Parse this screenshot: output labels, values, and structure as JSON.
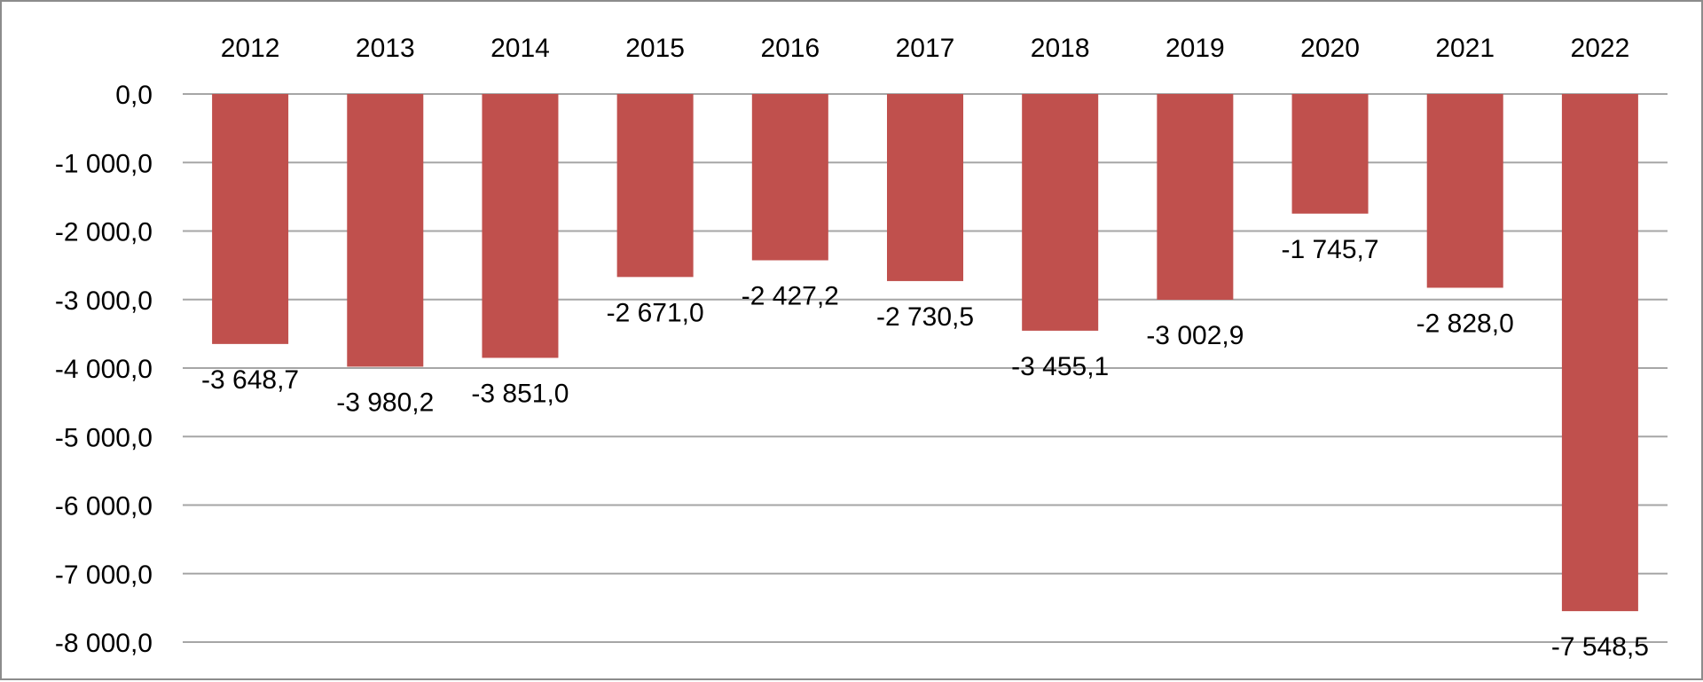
{
  "chart_data": {
    "type": "bar",
    "title": "",
    "xlabel": "",
    "ylabel": "",
    "categories": [
      "2012",
      "2013",
      "2014",
      "2015",
      "2016",
      "2017",
      "2018",
      "2019",
      "2020",
      "2021",
      "2022"
    ],
    "values": [
      -3648.7,
      -3980.2,
      -3851.0,
      -2671.0,
      -2427.2,
      -2730.5,
      -3455.1,
      -3002.9,
      -1745.7,
      -2828.0,
      -7548.5
    ],
    "data_labels": [
      "-3 648,7",
      "-3 980,2",
      "-3 851,0",
      "-2 671,0",
      "-2 427,2",
      "-2 730,5",
      "-3 455,1",
      "-3 002,9",
      "-1 745,7",
      "-2 828,0",
      "-7 548,5"
    ],
    "ylim": [
      -8000,
      0
    ],
    "y_ticks": [
      0,
      -1000,
      -2000,
      -3000,
      -4000,
      -5000,
      -6000,
      -7000,
      -8000
    ],
    "y_tick_labels": [
      "0,0",
      "-1 000,0",
      "-2 000,0",
      "-3 000,0",
      "-4 000,0",
      "-5 000,0",
      "-6 000,0",
      "-7 000,0",
      "-8 000,0"
    ],
    "category_axis_position": "top",
    "grid": true,
    "legend": "none",
    "bar_color": "#c0504d",
    "grid_color": "#a6a6a6"
  }
}
